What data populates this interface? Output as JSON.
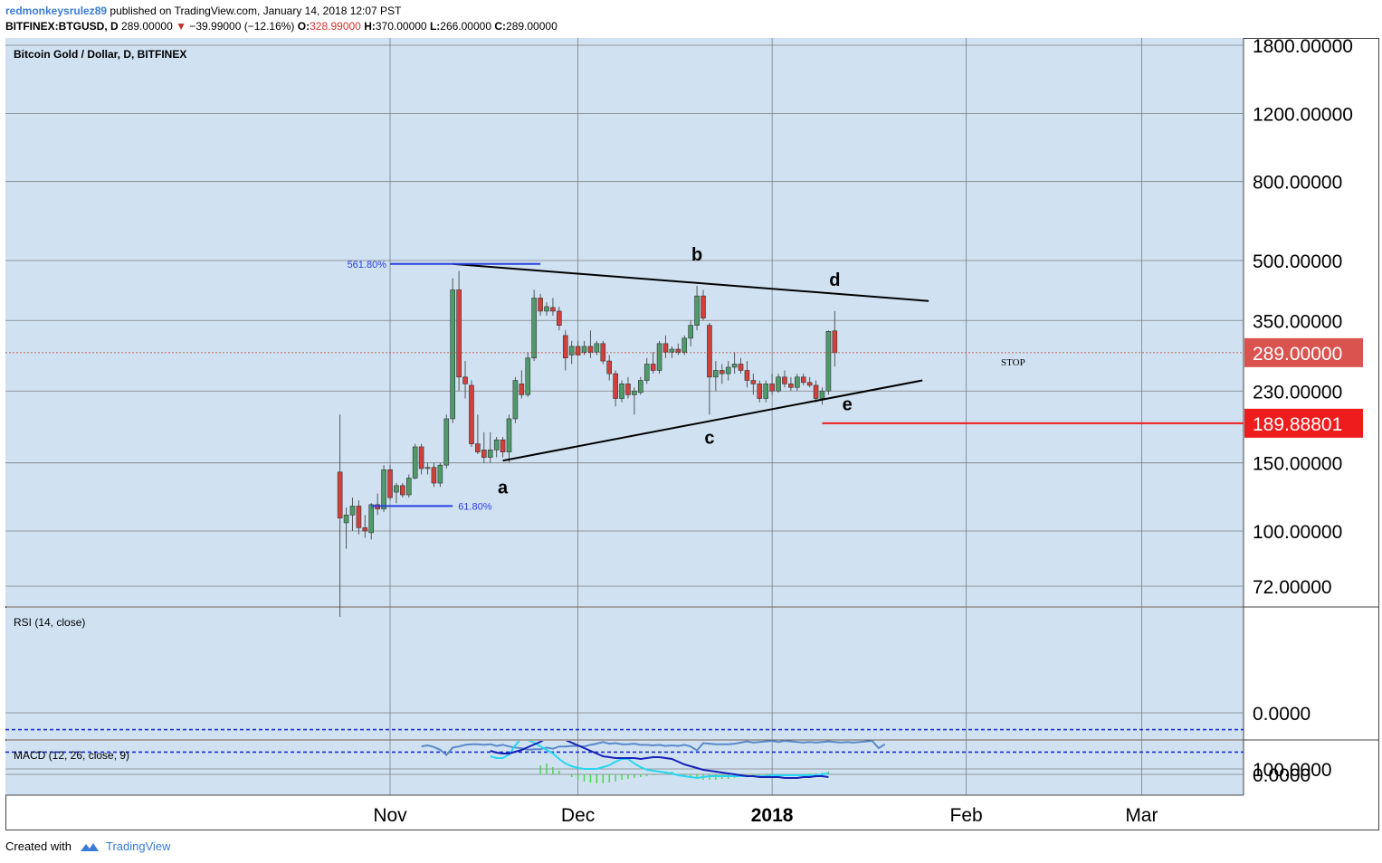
{
  "header": {
    "author": "redmonkeysrulez89",
    "published_text": "published on TradingView.com, January 14, 2018 12:07 PST",
    "symbol": "BITFINEX:BTGUSD, D",
    "price": "289.00000",
    "change_arrow": "▼",
    "change": "−39.99000 (−12.16%)",
    "open_label": "O:",
    "open": "328.99000",
    "high_label": "H:",
    "high": "370.00000",
    "low_label": "L:",
    "low": "266.00000",
    "close_label": "C:",
    "close": "289.00000"
  },
  "footer": {
    "created_with": "Created with",
    "brand": "TradingView",
    "logo_icon": "tradingview-cloud-icon"
  },
  "colors": {
    "pane_bg": "#d0e2f2",
    "grid": "#7e7e7e",
    "candle_up": "#4f9a69",
    "candle_down": "#d3403b",
    "rsi": "#5b88c9",
    "band": "#1a2bd4",
    "macd": "#1621b8",
    "signal": "#27d6f0",
    "hist": "#45d545",
    "stop": "#ee1c1c",
    "fib": "#2a3fe0"
  },
  "chart_data": {
    "type": "candlestick",
    "title": "Bitcoin Gold / Dollar, D, BITFINEX",
    "y_scale": "log",
    "y_ticks": [
      "1800.00000",
      "1200.00000",
      "800.00000",
      "500.00000",
      "350.00000",
      "230.00000",
      "150.00000",
      "100.00000",
      "72.00000"
    ],
    "y_tick_values": [
      1800,
      1200,
      800,
      500,
      350,
      230,
      150,
      100,
      72
    ],
    "x_ticks": [
      "Nov",
      "Dec",
      "2018",
      "Feb",
      "Mar"
    ],
    "x_tick_dates": [
      "2017-11-01",
      "2017-12-01",
      "2018-01-01",
      "2018-02-01",
      "2018-03-01"
    ],
    "last_price_label": "289.00000",
    "stop_price_label": "189.88801",
    "stop_text": "STOP",
    "fib_labels": [
      "561.80%",
      "61.80%"
    ],
    "wave_labels": [
      "a",
      "b",
      "c",
      "d",
      "e"
    ],
    "candles": [
      {
        "date": "2017-10-24",
        "o": 142,
        "h": 200,
        "l": 60,
        "c": 108
      },
      {
        "date": "2017-10-25",
        "o": 105,
        "h": 115,
        "l": 90,
        "c": 110
      },
      {
        "date": "2017-10-26",
        "o": 110,
        "h": 122,
        "l": 100,
        "c": 116
      },
      {
        "date": "2017-10-27",
        "o": 116,
        "h": 120,
        "l": 98,
        "c": 102
      },
      {
        "date": "2017-10-28",
        "o": 102,
        "h": 110,
        "l": 96,
        "c": 100
      },
      {
        "date": "2017-10-29",
        "o": 99,
        "h": 118,
        "l": 95,
        "c": 117
      },
      {
        "date": "2017-10-30",
        "o": 117,
        "h": 125,
        "l": 110,
        "c": 114
      },
      {
        "date": "2017-10-31",
        "o": 114,
        "h": 148,
        "l": 112,
        "c": 144
      },
      {
        "date": "2017-11-01",
        "o": 144,
        "h": 148,
        "l": 120,
        "c": 122
      },
      {
        "date": "2017-11-02",
        "o": 126,
        "h": 133,
        "l": 118,
        "c": 131
      },
      {
        "date": "2017-11-03",
        "o": 131,
        "h": 133,
        "l": 122,
        "c": 124
      },
      {
        "date": "2017-11-04",
        "o": 124,
        "h": 140,
        "l": 122,
        "c": 137
      },
      {
        "date": "2017-11-05",
        "o": 137,
        "h": 168,
        "l": 136,
        "c": 165
      },
      {
        "date": "2017-11-06",
        "o": 165,
        "h": 168,
        "l": 140,
        "c": 145
      },
      {
        "date": "2017-11-07",
        "o": 145,
        "h": 150,
        "l": 140,
        "c": 146
      },
      {
        "date": "2017-11-08",
        "o": 146,
        "h": 150,
        "l": 130,
        "c": 133
      },
      {
        "date": "2017-11-09",
        "o": 133,
        "h": 150,
        "l": 130,
        "c": 148
      },
      {
        "date": "2017-11-10",
        "o": 148,
        "h": 200,
        "l": 145,
        "c": 195
      },
      {
        "date": "2017-11-11",
        "o": 195,
        "h": 450,
        "l": 190,
        "c": 420
      },
      {
        "date": "2017-11-12",
        "o": 420,
        "h": 470,
        "l": 230,
        "c": 250
      },
      {
        "date": "2017-11-13",
        "o": 250,
        "h": 275,
        "l": 220,
        "c": 240
      },
      {
        "date": "2017-11-14",
        "o": 238,
        "h": 245,
        "l": 165,
        "c": 168
      },
      {
        "date": "2017-11-15",
        "o": 168,
        "h": 200,
        "l": 158,
        "c": 160
      },
      {
        "date": "2017-11-16",
        "o": 162,
        "h": 180,
        "l": 150,
        "c": 155
      },
      {
        "date": "2017-11-17",
        "o": 155,
        "h": 180,
        "l": 150,
        "c": 162
      },
      {
        "date": "2017-11-18",
        "o": 162,
        "h": 175,
        "l": 155,
        "c": 172
      },
      {
        "date": "2017-11-19",
        "o": 172,
        "h": 175,
        "l": 155,
        "c": 160
      },
      {
        "date": "2017-11-20",
        "o": 160,
        "h": 200,
        "l": 150,
        "c": 195
      },
      {
        "date": "2017-11-21",
        "o": 195,
        "h": 250,
        "l": 190,
        "c": 245
      },
      {
        "date": "2017-11-22",
        "o": 240,
        "h": 260,
        "l": 220,
        "c": 225
      },
      {
        "date": "2017-11-23",
        "o": 225,
        "h": 290,
        "l": 222,
        "c": 280
      },
      {
        "date": "2017-11-24",
        "o": 280,
        "h": 420,
        "l": 275,
        "c": 400
      },
      {
        "date": "2017-11-25",
        "o": 400,
        "h": 410,
        "l": 360,
        "c": 370
      },
      {
        "date": "2017-11-26",
        "o": 370,
        "h": 390,
        "l": 360,
        "c": 380
      },
      {
        "date": "2017-11-27",
        "o": 378,
        "h": 400,
        "l": 360,
        "c": 370
      },
      {
        "date": "2017-11-28",
        "o": 370,
        "h": 380,
        "l": 330,
        "c": 340
      },
      {
        "date": "2017-11-29",
        "o": 320,
        "h": 330,
        "l": 260,
        "c": 280
      },
      {
        "date": "2017-11-30",
        "o": 285,
        "h": 310,
        "l": 270,
        "c": 300
      },
      {
        "date": "2017-12-01",
        "o": 300,
        "h": 310,
        "l": 285,
        "c": 285
      },
      {
        "date": "2017-12-02",
        "o": 290,
        "h": 310,
        "l": 285,
        "c": 300
      },
      {
        "date": "2017-12-03",
        "o": 300,
        "h": 330,
        "l": 280,
        "c": 290
      },
      {
        "date": "2017-12-04",
        "o": 290,
        "h": 310,
        "l": 285,
        "c": 305
      },
      {
        "date": "2017-12-05",
        "o": 305,
        "h": 310,
        "l": 270,
        "c": 275
      },
      {
        "date": "2017-12-06",
        "o": 275,
        "h": 285,
        "l": 245,
        "c": 255
      },
      {
        "date": "2017-12-07",
        "o": 255,
        "h": 260,
        "l": 210,
        "c": 220
      },
      {
        "date": "2017-12-08",
        "o": 220,
        "h": 245,
        "l": 215,
        "c": 240
      },
      {
        "date": "2017-12-09",
        "o": 240,
        "h": 250,
        "l": 220,
        "c": 225
      },
      {
        "date": "2017-12-10",
        "o": 225,
        "h": 235,
        "l": 200,
        "c": 230
      },
      {
        "date": "2017-12-11",
        "o": 228,
        "h": 250,
        "l": 225,
        "c": 245
      },
      {
        "date": "2017-12-12",
        "o": 245,
        "h": 280,
        "l": 240,
        "c": 270
      },
      {
        "date": "2017-12-13",
        "o": 270,
        "h": 290,
        "l": 255,
        "c": 260
      },
      {
        "date": "2017-12-14",
        "o": 260,
        "h": 310,
        "l": 255,
        "c": 305
      },
      {
        "date": "2017-12-15",
        "o": 305,
        "h": 320,
        "l": 280,
        "c": 290
      },
      {
        "date": "2017-12-16",
        "o": 290,
        "h": 300,
        "l": 280,
        "c": 295
      },
      {
        "date": "2017-12-17",
        "o": 295,
        "h": 305,
        "l": 285,
        "c": 290
      },
      {
        "date": "2017-12-18",
        "o": 290,
        "h": 320,
        "l": 285,
        "c": 315
      },
      {
        "date": "2017-12-19",
        "o": 315,
        "h": 350,
        "l": 300,
        "c": 340
      },
      {
        "date": "2017-12-20",
        "o": 340,
        "h": 430,
        "l": 330,
        "c": 405
      },
      {
        "date": "2017-12-21",
        "o": 405,
        "h": 420,
        "l": 350,
        "c": 355
      },
      {
        "date": "2017-12-22",
        "o": 340,
        "h": 345,
        "l": 200,
        "c": 250
      },
      {
        "date": "2017-12-23",
        "o": 250,
        "h": 275,
        "l": 230,
        "c": 260
      },
      {
        "date": "2017-12-24",
        "o": 260,
        "h": 270,
        "l": 240,
        "c": 255
      },
      {
        "date": "2017-12-25",
        "o": 255,
        "h": 275,
        "l": 245,
        "c": 265
      },
      {
        "date": "2017-12-26",
        "o": 265,
        "h": 290,
        "l": 255,
        "c": 270
      },
      {
        "date": "2017-12-27",
        "o": 270,
        "h": 280,
        "l": 255,
        "c": 260
      },
      {
        "date": "2017-12-28",
        "o": 260,
        "h": 275,
        "l": 235,
        "c": 245
      },
      {
        "date": "2017-12-29",
        "o": 245,
        "h": 255,
        "l": 225,
        "c": 240
      },
      {
        "date": "2017-12-30",
        "o": 240,
        "h": 245,
        "l": 215,
        "c": 220
      },
      {
        "date": "2017-12-31",
        "o": 220,
        "h": 245,
        "l": 215,
        "c": 240
      },
      {
        "date": "2018-01-01",
        "o": 240,
        "h": 255,
        "l": 225,
        "c": 230
      },
      {
        "date": "2018-01-02",
        "o": 230,
        "h": 255,
        "l": 228,
        "c": 250
      },
      {
        "date": "2018-01-03",
        "o": 250,
        "h": 260,
        "l": 235,
        "c": 240
      },
      {
        "date": "2018-01-04",
        "o": 240,
        "h": 250,
        "l": 230,
        "c": 235
      },
      {
        "date": "2018-01-05",
        "o": 235,
        "h": 255,
        "l": 230,
        "c": 250
      },
      {
        "date": "2018-01-06",
        "o": 250,
        "h": 255,
        "l": 238,
        "c": 242
      },
      {
        "date": "2018-01-07",
        "o": 242,
        "h": 250,
        "l": 235,
        "c": 238
      },
      {
        "date": "2018-01-08",
        "o": 238,
        "h": 245,
        "l": 215,
        "c": 220
      },
      {
        "date": "2018-01-09",
        "o": 220,
        "h": 235,
        "l": 212,
        "c": 230
      },
      {
        "date": "2018-01-10",
        "o": 230,
        "h": 330,
        "l": 225,
        "c": 328
      },
      {
        "date": "2018-01-11",
        "o": 328.99,
        "h": 370,
        "l": 266,
        "c": 289
      }
    ],
    "rsi": {
      "label": "RSI (14, close)",
      "ticks": [
        "100.0000",
        "0.0000"
      ],
      "tick_values": [
        100,
        0
      ],
      "bands": [
        70,
        30
      ],
      "values": [
        60,
        58,
        61,
        66,
        75,
        62,
        60,
        57,
        56,
        56,
        57,
        56,
        59,
        57,
        60,
        62,
        63,
        66,
        65,
        65,
        62,
        64,
        60,
        60,
        59,
        59,
        60,
        57,
        55,
        52,
        55,
        54,
        56,
        56,
        55,
        57,
        57,
        58,
        57,
        59,
        58,
        59,
        57,
        60,
        67,
        54,
        55,
        56,
        56,
        56,
        55,
        53,
        51,
        53,
        52,
        51,
        50,
        52,
        50,
        51,
        52,
        53,
        52,
        53,
        52,
        51,
        52,
        53,
        52,
        53,
        52,
        51,
        50,
        63,
        56
      ]
    },
    "macd": {
      "label": "MACD (12, 26, close, 9)",
      "ticks": [
        "0.0000"
      ],
      "tick_values": [
        0
      ],
      "macd": [
        26,
        24,
        23,
        23,
        25,
        27,
        30,
        33,
        36,
        40,
        41,
        40,
        38,
        35,
        32,
        29,
        26,
        23,
        20,
        19,
        18,
        18,
        18,
        18,
        17,
        18,
        19,
        19,
        18,
        17,
        14,
        11,
        9,
        7,
        5,
        4,
        3,
        2,
        1,
        0,
        -1,
        -2,
        -2,
        -3,
        -3,
        -3,
        -3,
        -4,
        -4,
        -4,
        -3,
        -3,
        -2,
        -2,
        -3
      ],
      "signal": [
        20,
        18,
        18,
        22,
        32,
        40,
        38,
        35,
        31,
        27,
        23,
        17,
        12,
        9,
        7,
        6,
        6,
        6,
        8,
        10,
        14,
        17,
        17,
        12,
        8,
        5,
        4,
        3,
        2,
        1,
        -1,
        -2,
        -3,
        -4,
        -3,
        -2,
        -2,
        -2,
        -2,
        -2,
        -2,
        -2,
        -2,
        -2,
        -2,
        -1,
        -1,
        -1,
        -1,
        -1,
        -1,
        -1,
        -1,
        0,
        1
      ],
      "hist": [
        0,
        0,
        0,
        0,
        0,
        0,
        0,
        0,
        10,
        12,
        8,
        4,
        0,
        -3,
        -6,
        -8,
        -9,
        -10,
        -10,
        -9,
        -8,
        -6,
        -5,
        -4,
        -3,
        -2,
        -1,
        0,
        2,
        3,
        -1,
        -3,
        -4,
        -5,
        -6,
        -6,
        -6,
        -5,
        -5,
        -4,
        -3,
        -3,
        -2,
        -2,
        -1,
        -1,
        -1,
        -1,
        0,
        0,
        0,
        1,
        1,
        2,
        3
      ]
    }
  }
}
